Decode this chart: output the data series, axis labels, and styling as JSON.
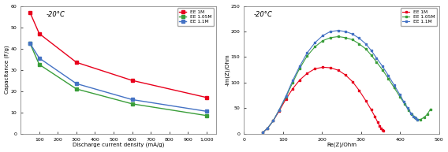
{
  "left_plot": {
    "title": "-20°C",
    "xlabel": "Discharge current density (mA/g)",
    "ylabel": "Capacitance (F/g)",
    "xlim": [
      0,
      1050
    ],
    "ylim": [
      0,
      60
    ],
    "xticks": [
      100,
      200,
      300,
      400,
      500,
      600,
      700,
      800,
      900,
      1000
    ],
    "xtick_labels": [
      "100",
      "200",
      "300",
      "400",
      "500",
      "600",
      "700",
      "800",
      "900",
      "1,000"
    ],
    "yticks": [
      0,
      10,
      20,
      30,
      40,
      50,
      60
    ],
    "series": [
      {
        "label": "EE 1M",
        "color": "#e8001c",
        "marker": "s",
        "x": [
          50,
          100,
          300,
          600,
          1000
        ],
        "y": [
          57.0,
          47.0,
          33.5,
          25.0,
          17.0
        ]
      },
      {
        "label": "EE 1.05M",
        "color": "#3a9e3a",
        "marker": "s",
        "x": [
          50,
          100,
          300,
          600,
          1000
        ],
        "y": [
          42.5,
          32.5,
          21.0,
          14.0,
          8.5
        ]
      },
      {
        "label": "EE 1.1M",
        "color": "#4472c4",
        "marker": "s",
        "x": [
          50,
          100,
          300,
          600,
          1000
        ],
        "y": [
          42.5,
          35.5,
          23.5,
          16.0,
          10.5
        ]
      }
    ]
  },
  "right_plot": {
    "title": "-20°C",
    "xlabel": "Re(Z)/Ohm",
    "ylabel": "-Im(Z)/Ohm",
    "xlim": [
      0,
      500
    ],
    "ylim": [
      0,
      250
    ],
    "xticks": [
      0,
      100,
      200,
      300,
      400,
      500
    ],
    "yticks": [
      0,
      50,
      100,
      150,
      200,
      250
    ],
    "series": [
      {
        "label": "EE 1M",
        "color": "#e8001c",
        "marker": "s",
        "x": [
          48,
          60,
          75,
          90,
          108,
          125,
          143,
          162,
          182,
          202,
          222,
          242,
          260,
          278,
          295,
          312,
          326,
          336,
          343,
          348,
          352,
          355,
          358
        ],
        "y": [
          2,
          10,
          25,
          44,
          68,
          88,
          105,
          118,
          127,
          130,
          129,
          124,
          115,
          102,
          85,
          65,
          47,
          33,
          22,
          15,
          10,
          7,
          5
        ]
      },
      {
        "label": "EE 1.05M",
        "color": "#3a9e3a",
        "marker": "s",
        "x": [
          48,
          60,
          75,
          90,
          108,
          125,
          143,
          162,
          182,
          202,
          222,
          242,
          260,
          278,
          295,
          312,
          326,
          340,
          355,
          370,
          385,
          400,
          412,
          422,
          430,
          438,
          445,
          453,
          462,
          470,
          478
        ],
        "y": [
          2,
          10,
          25,
          46,
          72,
          100,
          128,
          152,
          170,
          182,
          188,
          190,
          188,
          184,
          176,
          166,
          154,
          140,
          125,
          108,
          90,
          72,
          58,
          46,
          38,
          32,
          28,
          28,
          32,
          38,
          48
        ]
      },
      {
        "label": "EE 1.1M",
        "color": "#4472c4",
        "marker": "s",
        "x": [
          48,
          60,
          75,
          90,
          108,
          125,
          143,
          162,
          182,
          202,
          222,
          242,
          260,
          278,
          295,
          312,
          326,
          340,
          355,
          370,
          385,
          400,
          410,
          420,
          428,
          435,
          440,
          445
        ],
        "y": [
          2,
          10,
          25,
          46,
          74,
          104,
          132,
          158,
          178,
          192,
          200,
          202,
          200,
          195,
          187,
          176,
          163,
          148,
          132,
          114,
          95,
          76,
          62,
          50,
          40,
          34,
          30,
          28
        ]
      }
    ]
  },
  "bg_color": "#ffffff",
  "spine_color": "#888888"
}
